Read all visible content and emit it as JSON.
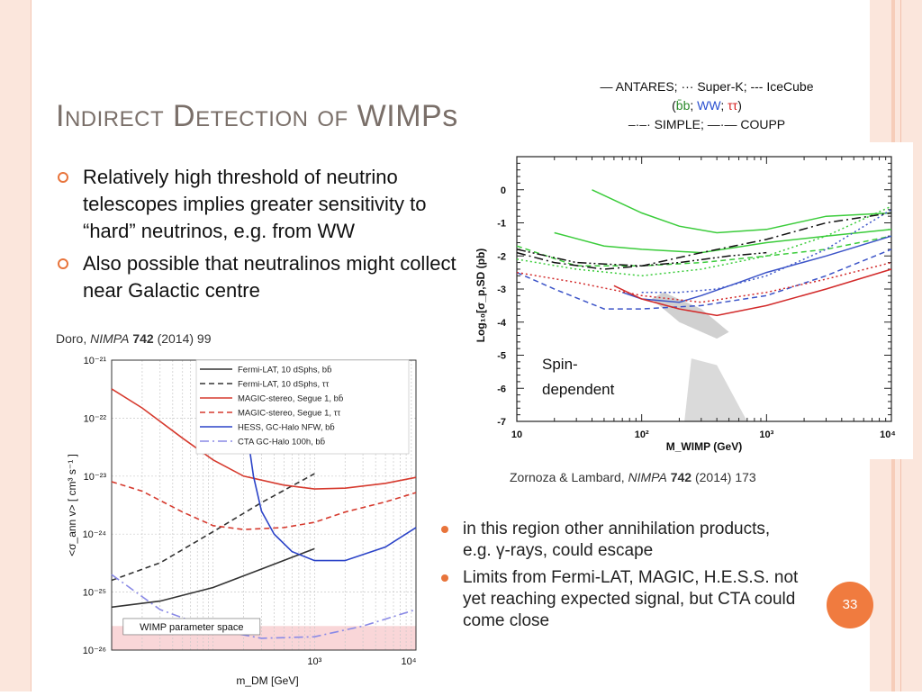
{
  "slide": {
    "title_part1": "Indirect Detection of ",
    "title_part2": "WIMPs",
    "bullets": [
      "Relatively high threshold of neutrino telescopes implies greater sensitivity to “hard” neutrinos, e.g. from WW",
      "Also possible that neutralinos might collect near Galactic centre"
    ],
    "left_cite": {
      "authors": "Doro, ",
      "journal": "NIMPA",
      "volume": " 742",
      "rest": " (2014) 99"
    },
    "right_cite": {
      "authors": "Zornoza & Lambard, ",
      "journal": "NIMPA",
      "volume": " 742",
      "rest": " (2014) 173"
    },
    "legend_top": {
      "line1": "— ANTARES; ··· Super-K;  --- IceCube",
      "open": "(",
      "bb": "b̄b",
      "sep1": "; ",
      "ww": "WW",
      "sep2": "; ",
      "tt": "ττ",
      "close": ")",
      "line3": "–·–· SIMPLE; —·— COUPP"
    },
    "right_bullets": [
      "in this region other annihilation products, e.g. γ-rays, could escape",
      "Limits from Fermi-LAT, MAGIC, H.E.S.S. not yet reaching expected signal, but CTA could come close"
    ],
    "page_number": "33",
    "colors": {
      "accent": "#f07b3f",
      "stripe": "#fbe6dc",
      "title": "#7a6f69"
    }
  },
  "chart_data": [
    {
      "type": "line",
      "xlabel": "m_DM [GeV]",
      "ylabel": "<σ_ann v> [ cm³ s⁻¹ ]",
      "xscale": "log",
      "yscale": "log",
      "x_ticks": [
        "10³",
        "10⁴"
      ],
      "y_ticks": [
        "10⁻²¹",
        "10⁻²²",
        "10⁻²³",
        "10⁻²⁴",
        "10⁻²⁵",
        "10⁻²⁶"
      ],
      "ylim": [
        1e-26,
        1e-21
      ],
      "shaded_region_label": "WIMP parameter space",
      "legend_placement": "top-right",
      "series": [
        {
          "name": "Fermi-LAT, 10 dSphs, bb̄",
          "color": "#333333",
          "dash": "solid",
          "x": [
            10,
            30,
            100,
            300,
            1000
          ],
          "y": [
            5.5e-26,
            7e-26,
            1.2e-25,
            2.5e-25,
            5.6e-25
          ]
        },
        {
          "name": "Fermi-LAT, 10 dSphs, ττ",
          "color": "#333333",
          "dash": "dashed",
          "x": [
            10,
            30,
            100,
            300,
            1000
          ],
          "y": [
            1.6e-25,
            3.2e-25,
            1.1e-24,
            3.5e-24,
            1.1e-23
          ]
        },
        {
          "name": "MAGIC-stereo, Segue 1, bb̄",
          "color": "#d63a2e",
          "dash": "solid",
          "x": [
            10,
            20,
            50,
            100,
            200,
            500,
            1000,
            2000,
            5000,
            10000
          ],
          "y": [
            3.2e-22,
            1.5e-22,
            4.5e-23,
            1.9e-23,
            1e-23,
            7e-24,
            6e-24,
            6.2e-24,
            7.5e-24,
            9.5e-24
          ]
        },
        {
          "name": "MAGIC-stereo, Segue 1, ττ",
          "color": "#d63a2e",
          "dash": "dashed",
          "x": [
            10,
            20,
            50,
            100,
            200,
            500,
            1000,
            2000,
            5000,
            10000
          ],
          "y": [
            8e-24,
            5.5e-24,
            2.4e-24,
            1.4e-24,
            1.2e-24,
            1.3e-24,
            1.6e-24,
            2.4e-24,
            3.6e-24,
            5.2e-24
          ]
        },
        {
          "name": "HESS, GC-Halo NFW, bb̄",
          "color": "#2b43c8",
          "dash": "solid",
          "x": [
            200,
            250,
            300,
            400,
            600,
            1000,
            2000,
            5000,
            10000
          ],
          "y": [
            1.5e-22,
            1e-23,
            2.5e-24,
            1e-24,
            5e-25,
            3.5e-25,
            3.5e-25,
            6e-25,
            1.3e-24
          ]
        },
        {
          "name": "CTA GC-Halo 100h, bb̄",
          "color": "#8a8ae6",
          "dash": "dashdot",
          "x": [
            10,
            30,
            100,
            300,
            1000,
            3000,
            10000
          ],
          "y": [
            2e-25,
            5e-26,
            2.3e-26,
            1.6e-26,
            1.7e-26,
            2.6e-26,
            5e-26
          ]
        }
      ]
    },
    {
      "type": "line",
      "annotation": "Spin-dependent",
      "xlabel": "M_WIMP (GeV)",
      "ylabel": "Log₁₀[σ_p,SD (pb)",
      "xscale": "log",
      "x_ticks": [
        "10",
        "10²",
        "10³",
        "10⁴"
      ],
      "y_ticks": [
        "0",
        "-1",
        "-2",
        "-3",
        "-4",
        "-5",
        "-6",
        "-7"
      ],
      "xlim": [
        10,
        10000
      ],
      "ylim": [
        -7,
        1
      ],
      "series": [
        {
          "color": "#3bcc3b",
          "dash": "solid",
          "x": [
            40,
            100,
            200,
            400,
            1000,
            3000,
            10000
          ],
          "y": [
            0.0,
            -0.7,
            -1.1,
            -1.3,
            -1.2,
            -0.8,
            -0.7
          ]
        },
        {
          "color": "#3bcc3b",
          "dash": "solid",
          "x": [
            20,
            50,
            100,
            300,
            1000,
            3000,
            10000
          ],
          "y": [
            -1.3,
            -1.7,
            -1.8,
            -1.9,
            -1.6,
            -1.4,
            -1.2
          ]
        },
        {
          "color": "#3bcc3b",
          "dash": "dotted",
          "x": [
            10,
            30,
            100,
            300,
            1000,
            3000,
            10000
          ],
          "y": [
            -2.1,
            -2.4,
            -2.6,
            -2.4,
            -2.0,
            -1.4,
            -0.5
          ]
        },
        {
          "color": "#3bcc3b",
          "dash": "dashed",
          "x": [
            10,
            30,
            100,
            300,
            1000,
            3000,
            10000
          ],
          "y": [
            -1.7,
            -2.3,
            -2.3,
            -2.2,
            -2.0,
            -1.8,
            -1.4
          ]
        },
        {
          "color": "#3c54c8",
          "dash": "solid",
          "x": [
            70,
            100,
            200,
            300,
            600,
            1000,
            3000,
            10000
          ],
          "y": [
            -3.1,
            -3.3,
            -3.4,
            -3.2,
            -2.8,
            -2.5,
            -2.0,
            -1.4
          ]
        },
        {
          "color": "#3c54c8",
          "dash": "dotted",
          "x": [
            100,
            200,
            400,
            1000,
            3000,
            10000
          ],
          "y": [
            -3.1,
            -3.1,
            -3.0,
            -2.6,
            -1.8,
            -0.6
          ]
        },
        {
          "color": "#3c54c8",
          "dash": "dashed",
          "x": [
            10,
            20,
            50,
            100,
            300,
            1000,
            3000,
            10000
          ],
          "y": [
            -2.5,
            -3.0,
            -3.6,
            -3.6,
            -3.5,
            -3.2,
            -2.6,
            -1.8
          ]
        },
        {
          "color": "#d22a2a",
          "dash": "solid",
          "x": [
            60,
            100,
            200,
            400,
            1000,
            3000,
            10000
          ],
          "y": [
            -2.9,
            -3.3,
            -3.6,
            -3.8,
            -3.5,
            -3.0,
            -2.4
          ]
        },
        {
          "color": "#d22a2a",
          "dash": "dotted",
          "x": [
            10,
            30,
            100,
            300,
            1000,
            3000,
            10000
          ],
          "y": [
            -2.5,
            -2.8,
            -3.2,
            -3.4,
            -3.1,
            -2.7,
            -2.2
          ]
        },
        {
          "color": "#111111",
          "dash": "dashdot",
          "x": [
            10,
            20,
            50,
            100,
            300,
            1000,
            3000,
            10000
          ],
          "y": [
            -1.9,
            -2.2,
            -2.4,
            -2.3,
            -1.9,
            -1.5,
            -1.0,
            -0.7
          ]
        },
        {
          "color": "#111111",
          "dash": "dashdotdot",
          "x": [
            10,
            30,
            100,
            200,
            500,
            1000
          ],
          "y": [
            -1.8,
            -2.2,
            -2.3,
            -2.2,
            -2.0,
            -1.9
          ]
        }
      ]
    }
  ]
}
